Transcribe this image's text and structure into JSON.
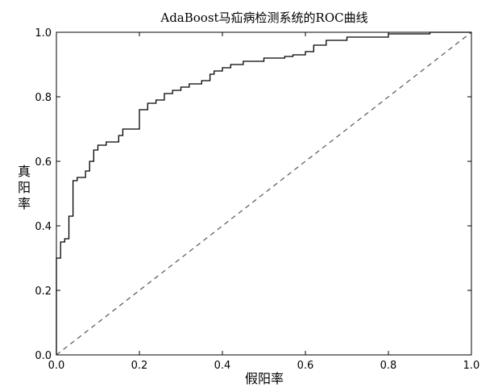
{
  "chart_data": {
    "type": "line",
    "title": "AdaBoost马疝病检测系统的ROC曲线",
    "xlabel": "假阳率",
    "ylabel": "真阳率",
    "xlim": [
      0.0,
      1.0
    ],
    "ylim": [
      0.0,
      1.0
    ],
    "xticks": [
      "0.0",
      "0.2",
      "0.4",
      "0.6",
      "0.8",
      "1.0"
    ],
    "yticks": [
      "0.0",
      "0.2",
      "0.4",
      "0.6",
      "0.8",
      "1.0"
    ],
    "grid": false,
    "series": [
      {
        "style": "solid",
        "color": "#000000",
        "x": [
          0.0,
          0.0,
          0.01,
          0.01,
          0.02,
          0.02,
          0.03,
          0.03,
          0.04,
          0.04,
          0.05,
          0.05,
          0.07,
          0.07,
          0.08,
          0.08,
          0.09,
          0.09,
          0.1,
          0.1,
          0.12,
          0.12,
          0.15,
          0.15,
          0.16,
          0.16,
          0.2,
          0.2,
          0.22,
          0.22,
          0.24,
          0.24,
          0.26,
          0.26,
          0.28,
          0.28,
          0.3,
          0.3,
          0.32,
          0.32,
          0.35,
          0.35,
          0.37,
          0.37,
          0.38,
          0.38,
          0.4,
          0.4,
          0.42,
          0.42,
          0.45,
          0.45,
          0.5,
          0.5,
          0.55,
          0.55,
          0.57,
          0.57,
          0.6,
          0.6,
          0.62,
          0.62,
          0.65,
          0.65,
          0.7,
          0.7,
          0.8,
          0.8,
          0.9,
          0.9,
          1.0
        ],
        "y": [
          0.0,
          0.3,
          0.3,
          0.35,
          0.35,
          0.36,
          0.36,
          0.43,
          0.43,
          0.54,
          0.54,
          0.55,
          0.55,
          0.57,
          0.57,
          0.6,
          0.6,
          0.635,
          0.635,
          0.65,
          0.65,
          0.66,
          0.66,
          0.68,
          0.68,
          0.7,
          0.7,
          0.76,
          0.76,
          0.78,
          0.78,
          0.79,
          0.79,
          0.81,
          0.81,
          0.82,
          0.82,
          0.83,
          0.83,
          0.84,
          0.84,
          0.85,
          0.85,
          0.87,
          0.87,
          0.88,
          0.88,
          0.89,
          0.89,
          0.9,
          0.9,
          0.91,
          0.91,
          0.92,
          0.92,
          0.925,
          0.925,
          0.93,
          0.93,
          0.94,
          0.94,
          0.96,
          0.96,
          0.975,
          0.975,
          0.985,
          0.985,
          0.995,
          0.995,
          1.0,
          1.0
        ]
      },
      {
        "style": "dashed",
        "color": "#555555",
        "x": [
          0.0,
          1.0
        ],
        "y": [
          0.0,
          1.0
        ]
      }
    ]
  }
}
